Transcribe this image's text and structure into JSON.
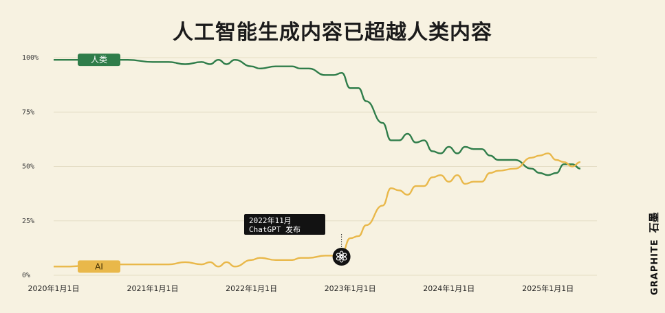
{
  "chart_data": {
    "type": "line",
    "title": "人工智能生成内容已超越人类内容",
    "y_ticks": [
      "0%",
      "25%",
      "50%",
      "75%",
      "100%"
    ],
    "ylim": [
      0,
      100
    ],
    "x_ticks": [
      "2020年1月1日",
      "2021年1月1日",
      "2022年1月1日",
      "2023年1月1日",
      "2024年1月1日",
      "2025年1月1日"
    ],
    "xlim": [
      "2020-01-01",
      "2025-07-01"
    ],
    "grid": true,
    "series": [
      {
        "name": "人类",
        "color": "#2f7d4a",
        "points": [
          [
            "2020-01-01",
            99
          ],
          [
            "2020-03-01",
            99
          ],
          [
            "2020-06-01",
            99
          ],
          [
            "2020-10-01",
            99
          ],
          [
            "2021-01-01",
            98
          ],
          [
            "2021-03-01",
            98
          ],
          [
            "2021-05-01",
            97
          ],
          [
            "2021-07-01",
            98
          ],
          [
            "2021-08-01",
            97
          ],
          [
            "2021-09-01",
            99
          ],
          [
            "2021-10-01",
            97
          ],
          [
            "2021-11-01",
            99
          ],
          [
            "2022-01-01",
            96
          ],
          [
            "2022-02-01",
            95
          ],
          [
            "2022-04-01",
            96
          ],
          [
            "2022-06-01",
            96
          ],
          [
            "2022-07-01",
            95
          ],
          [
            "2022-08-01",
            95
          ],
          [
            "2022-10-01",
            92
          ],
          [
            "2022-11-01",
            92
          ],
          [
            "2022-12-01",
            93
          ],
          [
            "2023-01-01",
            86
          ],
          [
            "2023-02-01",
            86
          ],
          [
            "2023-03-01",
            80
          ],
          [
            "2023-05-01",
            70
          ],
          [
            "2023-06-01",
            62
          ],
          [
            "2023-07-01",
            62
          ],
          [
            "2023-08-01",
            65
          ],
          [
            "2023-09-01",
            61
          ],
          [
            "2023-10-01",
            62
          ],
          [
            "2023-11-01",
            57
          ],
          [
            "2023-12-01",
            56
          ],
          [
            "2024-01-01",
            59
          ],
          [
            "2024-02-01",
            56
          ],
          [
            "2024-03-01",
            59
          ],
          [
            "2024-04-01",
            58
          ],
          [
            "2024-05-01",
            58
          ],
          [
            "2024-06-01",
            55
          ],
          [
            "2024-07-01",
            53
          ],
          [
            "2024-09-01",
            53
          ],
          [
            "2024-11-01",
            49
          ],
          [
            "2024-12-01",
            47
          ],
          [
            "2025-01-01",
            46
          ],
          [
            "2025-02-01",
            47
          ],
          [
            "2025-03-01",
            51
          ],
          [
            "2025-04-01",
            51
          ],
          [
            "2025-05-01",
            49
          ]
        ]
      },
      {
        "name": "AI",
        "color": "#e9b84a",
        "points": [
          [
            "2020-01-01",
            4
          ],
          [
            "2020-03-01",
            4
          ],
          [
            "2020-06-01",
            5
          ],
          [
            "2020-10-01",
            5
          ],
          [
            "2021-01-01",
            5
          ],
          [
            "2021-03-01",
            5
          ],
          [
            "2021-05-01",
            6
          ],
          [
            "2021-07-01",
            5
          ],
          [
            "2021-08-01",
            6
          ],
          [
            "2021-09-01",
            4
          ],
          [
            "2021-10-01",
            6
          ],
          [
            "2021-11-01",
            4
          ],
          [
            "2022-01-01",
            7
          ],
          [
            "2022-02-01",
            8
          ],
          [
            "2022-04-01",
            7
          ],
          [
            "2022-06-01",
            7
          ],
          [
            "2022-07-01",
            8
          ],
          [
            "2022-08-01",
            8
          ],
          [
            "2022-10-01",
            9
          ],
          [
            "2022-11-01",
            9
          ],
          [
            "2022-12-01",
            10
          ],
          [
            "2023-01-01",
            17
          ],
          [
            "2023-02-01",
            18
          ],
          [
            "2023-03-01",
            23
          ],
          [
            "2023-05-01",
            32
          ],
          [
            "2023-06-01",
            40
          ],
          [
            "2023-07-01",
            39
          ],
          [
            "2023-08-01",
            37
          ],
          [
            "2023-09-01",
            41
          ],
          [
            "2023-10-01",
            41
          ],
          [
            "2023-11-01",
            45
          ],
          [
            "2023-12-01",
            46
          ],
          [
            "2024-01-01",
            43
          ],
          [
            "2024-02-01",
            46
          ],
          [
            "2024-03-01",
            42
          ],
          [
            "2024-04-01",
            43
          ],
          [
            "2024-05-01",
            43
          ],
          [
            "2024-06-01",
            47
          ],
          [
            "2024-07-01",
            48
          ],
          [
            "2024-09-01",
            49
          ],
          [
            "2024-11-01",
            54
          ],
          [
            "2024-12-01",
            55
          ],
          [
            "2025-01-01",
            56
          ],
          [
            "2025-02-01",
            53
          ],
          [
            "2025-03-01",
            52
          ],
          [
            "2025-04-01",
            50
          ],
          [
            "2025-05-01",
            52
          ]
        ]
      }
    ],
    "annotation": {
      "date": "2022-11-30",
      "line1": "2022年11月",
      "line2": "ChatGPT 发布",
      "marker_icon": "openai-logo-icon"
    }
  },
  "brand": {
    "en": "GRAPHITE",
    "zh": "石墨"
  }
}
